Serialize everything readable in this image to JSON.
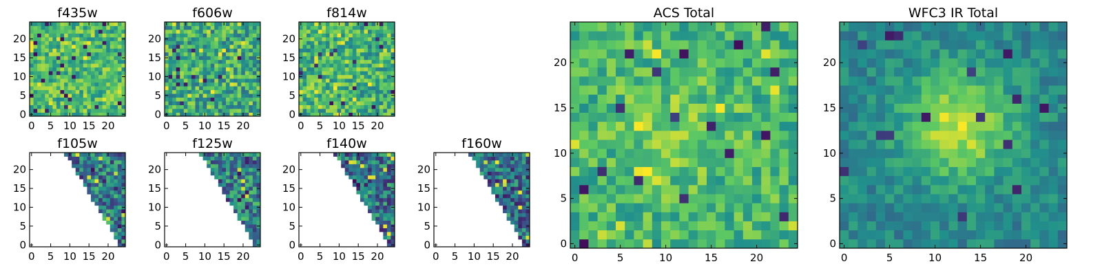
{
  "chart_data": {
    "type": "heatmap",
    "colormap": [
      "#440154",
      "#3b528b",
      "#21918c",
      "#5ec962",
      "#fde725"
    ],
    "panels": [
      {
        "title": "f435w",
        "xticks": [
          0,
          5,
          10,
          15,
          20
        ],
        "yticks": [
          0,
          5,
          10,
          15,
          20
        ],
        "range": [
          -0.5,
          24.5
        ],
        "pattern": "noise",
        "mean": 0.68,
        "spread": 0.22,
        "peak": 0.0,
        "seed": 11
      },
      {
        "title": "f606w",
        "xticks": [
          0,
          5,
          10,
          15,
          20
        ],
        "yticks": [
          0,
          5,
          10,
          15,
          20
        ],
        "range": [
          -0.5,
          24.5
        ],
        "pattern": "noise",
        "mean": 0.62,
        "spread": 0.26,
        "peak": 0.0,
        "seed": 23
      },
      {
        "title": "f814w",
        "xticks": [
          0,
          5,
          10,
          15,
          20
        ],
        "yticks": [
          0,
          5,
          10,
          15,
          20
        ],
        "range": [
          -0.5,
          24.5
        ],
        "pattern": "noise",
        "mean": 0.64,
        "spread": 0.25,
        "peak": 0.08,
        "seed": 37
      },
      {
        "title": "f105w",
        "xticks": [
          0,
          5,
          10,
          15,
          20
        ],
        "yticks": [
          0,
          5,
          10,
          15,
          20
        ],
        "range": [
          -0.5,
          24.5
        ],
        "pattern": "wedge",
        "mean": 0.42,
        "spread": 0.28,
        "peak": 0.0,
        "seed": 41
      },
      {
        "title": "f125w",
        "xticks": [
          0,
          5,
          10,
          15,
          20
        ],
        "yticks": [
          0,
          5,
          10,
          15,
          20
        ],
        "range": [
          -0.5,
          24.5
        ],
        "pattern": "wedge",
        "mean": 0.45,
        "spread": 0.28,
        "peak": 0.0,
        "seed": 53
      },
      {
        "title": "f140w",
        "xticks": [
          0,
          5,
          10,
          15,
          20
        ],
        "yticks": [
          0,
          5,
          10,
          15,
          20
        ],
        "range": [
          -0.5,
          24.5
        ],
        "pattern": "wedge",
        "mean": 0.4,
        "spread": 0.28,
        "peak": 0.0,
        "seed": 67
      },
      {
        "title": "f160w",
        "xticks": [
          0,
          5,
          10,
          15,
          20
        ],
        "yticks": [
          0,
          5,
          10,
          15,
          20
        ],
        "range": [
          -0.5,
          24.5
        ],
        "pattern": "wedge",
        "mean": 0.36,
        "spread": 0.28,
        "peak": 0.0,
        "seed": 79
      },
      {
        "title": "ACS Total",
        "xticks": [
          0,
          5,
          10,
          15,
          20
        ],
        "yticks": [
          0,
          5,
          10,
          15,
          20
        ],
        "range": [
          -0.5,
          24.5
        ],
        "pattern": "noise",
        "mean": 0.66,
        "spread": 0.18,
        "peak": 0.1,
        "seed": 97
      },
      {
        "title": "WFC3 IR Total",
        "xticks": [
          0,
          5,
          10,
          15,
          20
        ],
        "yticks": [
          0,
          5,
          10,
          15,
          20
        ],
        "range": [
          -0.5,
          24.5
        ],
        "pattern": "blob",
        "mean": 0.46,
        "spread": 0.12,
        "peak": 0.45,
        "center": [
          12.5,
          13
        ],
        "sigma": 4.2,
        "seed": 113
      }
    ]
  }
}
